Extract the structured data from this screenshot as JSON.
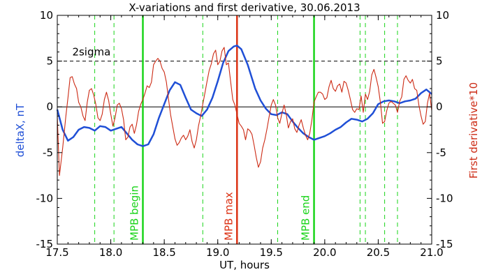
{
  "chart_data": {
    "type": "line",
    "title": "X-variations and first derivative, 30.06.2013",
    "xlabel": "UT, hours",
    "ylabel_left": "deltaX, nT",
    "ylabel_right": "First derivative*10",
    "xlim": [
      17.5,
      21.0
    ],
    "ylim": [
      -15,
      10
    ],
    "xticks": [
      "17.5",
      "18.0",
      "18.5",
      "19.0",
      "19.5",
      "20.0",
      "20.5",
      "21.0"
    ],
    "yticks": [
      "10",
      "5",
      "0",
      "-5",
      "-10",
      "-15"
    ],
    "colors": {
      "deltaX": "#1f4fd6",
      "derivative": "#cc2a14",
      "mpb_boundary": "#19d419",
      "mpb_max": "#dc3214",
      "dashed_green": "#19d419",
      "reference": "#000000"
    },
    "threshold": {
      "label": "2sigma",
      "value": 5
    },
    "zero_line": 0,
    "markers": [
      {
        "x": 18.3,
        "label": "MPB begin",
        "kind": "boundary"
      },
      {
        "x": 19.18,
        "label": "MPB max",
        "kind": "max"
      },
      {
        "x": 19.9,
        "label": "MPB end",
        "kind": "boundary"
      }
    ],
    "dashed_lines_x": [
      17.85,
      18.03,
      18.86,
      19.56,
      20.33,
      20.38,
      20.56,
      20.68
    ],
    "series": [
      {
        "key": "deltaX",
        "points": [
          [
            17.5,
            -0.3
          ],
          [
            17.55,
            -2.5
          ],
          [
            17.6,
            -3.7
          ],
          [
            17.65,
            -3.3
          ],
          [
            17.7,
            -2.5
          ],
          [
            17.75,
            -2.2
          ],
          [
            17.8,
            -2.3
          ],
          [
            17.85,
            -2.6
          ],
          [
            17.9,
            -2.1
          ],
          [
            17.95,
            -2.2
          ],
          [
            18.0,
            -2.6
          ],
          [
            18.05,
            -2.4
          ],
          [
            18.1,
            -2.2
          ],
          [
            18.15,
            -2.9
          ],
          [
            18.2,
            -3.6
          ],
          [
            18.25,
            -4.1
          ],
          [
            18.3,
            -4.3
          ],
          [
            18.35,
            -4.1
          ],
          [
            18.4,
            -3.0
          ],
          [
            18.45,
            -1.2
          ],
          [
            18.5,
            0.3
          ],
          [
            18.55,
            1.8
          ],
          [
            18.6,
            2.7
          ],
          [
            18.65,
            2.4
          ],
          [
            18.7,
            1.0
          ],
          [
            18.75,
            -0.3
          ],
          [
            18.8,
            -0.7
          ],
          [
            18.85,
            -1.0
          ],
          [
            18.9,
            -0.3
          ],
          [
            18.95,
            1.0
          ],
          [
            19.0,
            2.8
          ],
          [
            19.05,
            4.8
          ],
          [
            19.1,
            6.1
          ],
          [
            19.15,
            6.6
          ],
          [
            19.18,
            6.7
          ],
          [
            19.22,
            6.3
          ],
          [
            19.28,
            4.6
          ],
          [
            19.35,
            2.0
          ],
          [
            19.4,
            0.7
          ],
          [
            19.45,
            -0.2
          ],
          [
            19.5,
            -0.8
          ],
          [
            19.55,
            -0.9
          ],
          [
            19.6,
            -0.6
          ],
          [
            19.65,
            -0.8
          ],
          [
            19.7,
            -1.6
          ],
          [
            19.75,
            -2.3
          ],
          [
            19.8,
            -2.9
          ],
          [
            19.85,
            -3.3
          ],
          [
            19.9,
            -3.6
          ],
          [
            19.95,
            -3.4
          ],
          [
            20.0,
            -3.2
          ],
          [
            20.05,
            -2.9
          ],
          [
            20.1,
            -2.5
          ],
          [
            20.15,
            -2.2
          ],
          [
            20.2,
            -1.7
          ],
          [
            20.25,
            -1.3
          ],
          [
            20.3,
            -1.4
          ],
          [
            20.35,
            -1.6
          ],
          [
            20.4,
            -1.3
          ],
          [
            20.45,
            -0.7
          ],
          [
            20.5,
            0.3
          ],
          [
            20.55,
            0.6
          ],
          [
            20.6,
            0.7
          ],
          [
            20.65,
            0.6
          ],
          [
            20.7,
            0.4
          ],
          [
            20.75,
            0.6
          ],
          [
            20.8,
            0.7
          ],
          [
            20.85,
            0.9
          ],
          [
            20.9,
            1.5
          ],
          [
            20.95,
            1.9
          ],
          [
            21.0,
            1.4
          ]
        ]
      },
      {
        "key": "derivative",
        "points": [
          [
            17.5,
            -1.0
          ],
          [
            17.52,
            -7.5
          ],
          [
            17.55,
            -4.5
          ],
          [
            17.58,
            -1.0
          ],
          [
            17.6,
            1.0
          ],
          [
            17.62,
            3.2
          ],
          [
            17.64,
            3.3
          ],
          [
            17.66,
            2.5
          ],
          [
            17.68,
            2.0
          ],
          [
            17.7,
            0.5
          ],
          [
            17.72,
            0.0
          ],
          [
            17.74,
            -1.0
          ],
          [
            17.76,
            -1.5
          ],
          [
            17.78,
            0.5
          ],
          [
            17.8,
            1.8
          ],
          [
            17.82,
            2.0
          ],
          [
            17.84,
            1.3
          ],
          [
            17.86,
            0.3
          ],
          [
            17.88,
            -1.2
          ],
          [
            17.9,
            -1.5
          ],
          [
            17.92,
            -0.8
          ],
          [
            17.94,
            0.8
          ],
          [
            17.96,
            1.6
          ],
          [
            17.98,
            0.7
          ],
          [
            18.0,
            -0.8
          ],
          [
            18.02,
            -2.1
          ],
          [
            18.04,
            -1.2
          ],
          [
            18.06,
            0.2
          ],
          [
            18.08,
            0.4
          ],
          [
            18.1,
            -0.2
          ],
          [
            18.12,
            -1.4
          ],
          [
            18.14,
            -3.6
          ],
          [
            18.16,
            -3.3
          ],
          [
            18.18,
            -2.2
          ],
          [
            18.2,
            -1.9
          ],
          [
            18.22,
            -2.9
          ],
          [
            18.24,
            -2.0
          ],
          [
            18.26,
            -0.5
          ],
          [
            18.28,
            0.3
          ],
          [
            18.3,
            0.8
          ],
          [
            18.32,
            1.5
          ],
          [
            18.34,
            2.3
          ],
          [
            18.36,
            2.1
          ],
          [
            18.38,
            2.7
          ],
          [
            18.4,
            4.6
          ],
          [
            18.42,
            5.0
          ],
          [
            18.44,
            5.3
          ],
          [
            18.46,
            5.0
          ],
          [
            18.48,
            4.2
          ],
          [
            18.5,
            3.8
          ],
          [
            18.52,
            2.7
          ],
          [
            18.54,
            0.8
          ],
          [
            18.56,
            -0.9
          ],
          [
            18.58,
            -2.2
          ],
          [
            18.6,
            -3.5
          ],
          [
            18.62,
            -4.2
          ],
          [
            18.64,
            -3.9
          ],
          [
            18.66,
            -3.4
          ],
          [
            18.68,
            -3.1
          ],
          [
            18.7,
            -3.6
          ],
          [
            18.72,
            -3.2
          ],
          [
            18.74,
            -2.5
          ],
          [
            18.76,
            -3.8
          ],
          [
            18.78,
            -4.5
          ],
          [
            18.8,
            -3.6
          ],
          [
            18.82,
            -2.1
          ],
          [
            18.84,
            -1.0
          ],
          [
            18.86,
            0.3
          ],
          [
            18.88,
            1.5
          ],
          [
            18.9,
            2.8
          ],
          [
            18.92,
            4.0
          ],
          [
            18.94,
            4.7
          ],
          [
            18.96,
            5.8
          ],
          [
            18.98,
            6.2
          ],
          [
            19.0,
            4.6
          ],
          [
            19.02,
            5.0
          ],
          [
            19.04,
            6.1
          ],
          [
            19.06,
            6.5
          ],
          [
            19.08,
            4.6
          ],
          [
            19.1,
            4.8
          ],
          [
            19.12,
            2.8
          ],
          [
            19.14,
            0.8
          ],
          [
            19.16,
            0.2
          ],
          [
            19.18,
            -0.8
          ],
          [
            19.2,
            -1.8
          ],
          [
            19.22,
            -2.1
          ],
          [
            19.24,
            -2.5
          ],
          [
            19.26,
            -3.6
          ],
          [
            19.28,
            -2.4
          ],
          [
            19.3,
            -2.6
          ],
          [
            19.32,
            -3.0
          ],
          [
            19.34,
            -4.2
          ],
          [
            19.36,
            -5.5
          ],
          [
            19.38,
            -6.6
          ],
          [
            19.4,
            -6.0
          ],
          [
            19.42,
            -4.5
          ],
          [
            19.44,
            -3.6
          ],
          [
            19.46,
            -2.4
          ],
          [
            19.48,
            -1.1
          ],
          [
            19.5,
            0.2
          ],
          [
            19.52,
            0.8
          ],
          [
            19.54,
            0.2
          ],
          [
            19.56,
            -1.2
          ],
          [
            19.58,
            -1.8
          ],
          [
            19.6,
            -0.7
          ],
          [
            19.62,
            0.2
          ],
          [
            19.64,
            -0.8
          ],
          [
            19.66,
            -2.3
          ],
          [
            19.68,
            -1.6
          ],
          [
            19.7,
            -1.3
          ],
          [
            19.72,
            -2.4
          ],
          [
            19.74,
            -2.8
          ],
          [
            19.76,
            -2.0
          ],
          [
            19.78,
            -1.4
          ],
          [
            19.8,
            -2.3
          ],
          [
            19.82,
            -3.1
          ],
          [
            19.84,
            -3.6
          ],
          [
            19.86,
            -2.9
          ],
          [
            19.88,
            -1.4
          ],
          [
            19.9,
            0.5
          ],
          [
            19.92,
            1.1
          ],
          [
            19.94,
            1.6
          ],
          [
            19.96,
            1.6
          ],
          [
            19.98,
            1.4
          ],
          [
            20.0,
            0.8
          ],
          [
            20.02,
            1.0
          ],
          [
            20.04,
            2.2
          ],
          [
            20.06,
            2.9
          ],
          [
            20.08,
            2.0
          ],
          [
            20.1,
            1.7
          ],
          [
            20.12,
            2.3
          ],
          [
            20.14,
            2.5
          ],
          [
            20.16,
            1.6
          ],
          [
            20.18,
            2.8
          ],
          [
            20.2,
            2.6
          ],
          [
            20.22,
            1.8
          ],
          [
            20.24,
            0.8
          ],
          [
            20.26,
            -0.3
          ],
          [
            20.28,
            -0.6
          ],
          [
            20.3,
            -0.2
          ],
          [
            20.32,
            -0.3
          ],
          [
            20.34,
            1.2
          ],
          [
            20.36,
            -0.6
          ],
          [
            20.38,
            1.4
          ],
          [
            20.4,
            0.8
          ],
          [
            20.42,
            1.7
          ],
          [
            20.44,
            3.5
          ],
          [
            20.46,
            4.1
          ],
          [
            20.48,
            3.2
          ],
          [
            20.5,
            2.2
          ],
          [
            20.52,
            0.5
          ],
          [
            20.54,
            -1.8
          ],
          [
            20.56,
            -1.6
          ],
          [
            20.58,
            -0.4
          ],
          [
            20.6,
            0.4
          ],
          [
            20.62,
            0.6
          ],
          [
            20.64,
            0.4
          ],
          [
            20.66,
            0.2
          ],
          [
            20.68,
            -0.6
          ],
          [
            20.7,
            0.6
          ],
          [
            20.72,
            1.1
          ],
          [
            20.74,
            3.0
          ],
          [
            20.76,
            3.4
          ],
          [
            20.78,
            2.9
          ],
          [
            20.8,
            2.6
          ],
          [
            20.82,
            3.0
          ],
          [
            20.84,
            2.0
          ],
          [
            20.86,
            1.8
          ],
          [
            20.88,
            0.2
          ],
          [
            20.9,
            -1.0
          ],
          [
            20.92,
            -1.9
          ],
          [
            20.94,
            -1.6
          ],
          [
            20.96,
            0.4
          ],
          [
            20.98,
            1.5
          ],
          [
            21.0,
            -0.4
          ]
        ]
      }
    ]
  }
}
